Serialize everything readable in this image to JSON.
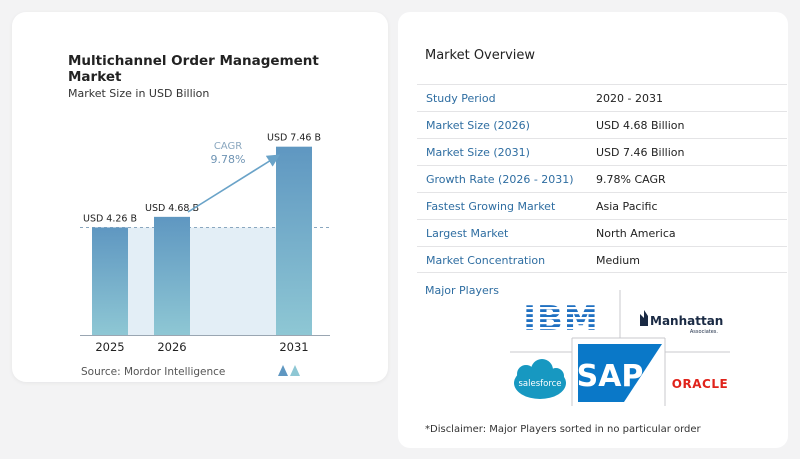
{
  "chart": {
    "title": "Multichannel Order Management Market",
    "subtitle": "Market Size in USD Billion",
    "source": "Source:  Mordor Intelligence",
    "cagr_label": "CAGR",
    "cagr_value": "9.78%"
  },
  "chart_data": {
    "type": "bar",
    "categories": [
      "2025",
      "2026",
      "2031"
    ],
    "values": [
      4.26,
      4.68,
      7.46
    ],
    "value_labels": [
      "USD 4.26 B",
      "USD 4.68 B",
      "USD 7.46 B"
    ],
    "ylim": [
      0,
      8.2
    ],
    "colors": {
      "bar_top": "#5f97c1",
      "bar_bottom": "#8ec7d4",
      "shade": "#e3eef6",
      "accent": "#6aa3c8"
    }
  },
  "overview": {
    "title": "Market Overview",
    "rows": [
      {
        "label": "Study Period",
        "value": "2020 - 2031"
      },
      {
        "label": "Market Size (2026)",
        "value": "USD 4.68 Billion"
      },
      {
        "label": "Market Size (2031)",
        "value": "USD 7.46 Billion"
      },
      {
        "label": "Growth Rate (2026 - 2031)",
        "value": "9.78% CAGR"
      },
      {
        "label": "Fastest Growing Market",
        "value": "Asia Pacific"
      },
      {
        "label": "Largest Market",
        "value": "North America"
      },
      {
        "label": "Market Concentration",
        "value": "Medium"
      }
    ],
    "major_players_label": "Major Players",
    "players": [
      "IBM",
      "Manhattan",
      "Associates.",
      "salesforce",
      "SAP",
      "ORACLE"
    ],
    "disclaimer": "*Disclaimer: Major Players sorted in no particular order"
  }
}
